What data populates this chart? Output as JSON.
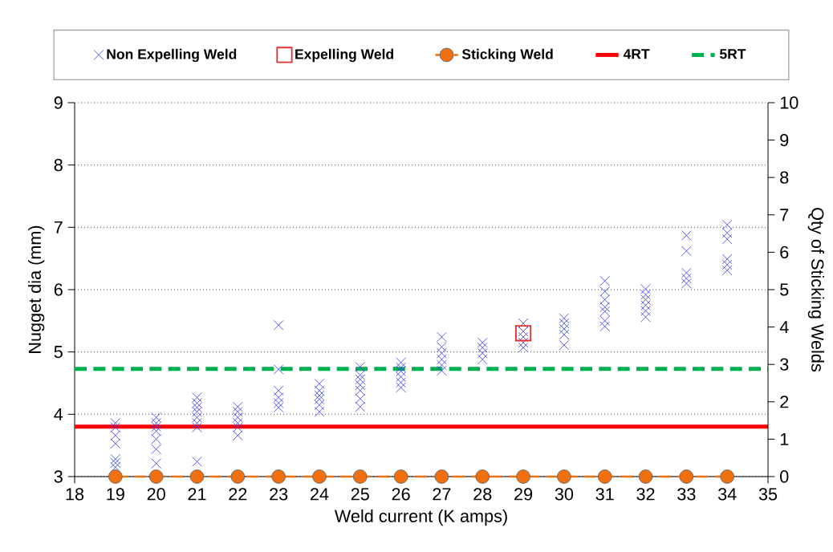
{
  "chart_data": {
    "type": "scatter",
    "xlabel": "Weld current (K amps)",
    "ylabel": "Nugget dia (mm)",
    "y2label": "Qty of Sticking Welds",
    "xlim": [
      18,
      35
    ],
    "xticks": [
      18,
      19,
      20,
      21,
      22,
      23,
      24,
      25,
      26,
      27,
      28,
      29,
      30,
      31,
      32,
      33,
      34,
      35
    ],
    "ylim": [
      3,
      9
    ],
    "yticks": [
      3,
      4,
      5,
      6,
      7,
      8,
      9
    ],
    "y2lim": [
      0,
      10
    ],
    "y2ticks": [
      0,
      1,
      2,
      3,
      4,
      5,
      6,
      7,
      8,
      9,
      10
    ],
    "grid": "y",
    "legend": "top",
    "series": [
      {
        "name": "Non Expelling Weld",
        "marker": "cross",
        "color": "#3b3bf0",
        "x": [
          19,
          19,
          19,
          19,
          19,
          19,
          19,
          20,
          20,
          20,
          20,
          20,
          20,
          20,
          21,
          21,
          21,
          21,
          21,
          21,
          21,
          21,
          22,
          22,
          22,
          22,
          22,
          22,
          23,
          23,
          23,
          23,
          23,
          23,
          24,
          24,
          24,
          24,
          24,
          24,
          25,
          25,
          25,
          25,
          25,
          25,
          25,
          26,
          26,
          26,
          26,
          26,
          26,
          27,
          27,
          27,
          27,
          27,
          27,
          28,
          28,
          28,
          28,
          29,
          29,
          29,
          29,
          29,
          30,
          30,
          30,
          30,
          30,
          31,
          31,
          31,
          31,
          31,
          31,
          31,
          32,
          32,
          32,
          32,
          32,
          32,
          33,
          33,
          33,
          33,
          33,
          34,
          34,
          34,
          34,
          34,
          34
        ],
        "values": [
          3.86,
          3.79,
          3.66,
          3.53,
          3.28,
          3.22,
          3.15,
          3.95,
          3.86,
          3.8,
          3.73,
          3.6,
          3.44,
          3.21,
          4.27,
          4.18,
          4.11,
          4.04,
          3.95,
          3.86,
          3.79,
          3.24,
          4.12,
          4.04,
          3.95,
          3.86,
          3.79,
          3.66,
          5.43,
          4.72,
          4.38,
          4.27,
          4.18,
          4.11,
          4.49,
          4.38,
          4.3,
          4.24,
          4.15,
          4.04,
          4.76,
          4.63,
          4.56,
          4.47,
          4.38,
          4.25,
          4.12,
          4.83,
          4.75,
          4.69,
          4.6,
          4.51,
          4.43,
          5.24,
          5.08,
          4.98,
          4.88,
          4.79,
          4.7,
          5.15,
          5.07,
          4.98,
          4.88,
          5.46,
          5.33,
          5.24,
          5.15,
          5.07,
          5.54,
          5.46,
          5.37,
          5.28,
          5.11,
          6.14,
          5.97,
          5.84,
          5.72,
          5.65,
          5.5,
          5.41,
          6.01,
          5.92,
          5.84,
          5.75,
          5.66,
          5.56,
          6.87,
          6.62,
          6.27,
          6.18,
          6.1,
          7.04,
          6.91,
          6.81,
          6.49,
          6.4,
          6.31
        ]
      },
      {
        "name": "Expelling Weld",
        "marker": "square",
        "color": "#e03030",
        "x": [
          29
        ],
        "values": [
          5.3
        ]
      },
      {
        "name": "Sticking Weld",
        "type": "line",
        "axis": "y2",
        "marker": "circle",
        "line_style": "dashed",
        "color": "#f07010",
        "x": [
          19,
          20,
          21,
          22,
          23,
          24,
          25,
          26,
          27,
          28,
          29,
          30,
          31,
          32,
          33,
          34
        ],
        "values": [
          0,
          0,
          0,
          0,
          0,
          0,
          0,
          0,
          0,
          0,
          0,
          0,
          0,
          0,
          0,
          0
        ]
      },
      {
        "name": "4RT",
        "type": "line",
        "color": "#ff0000",
        "x": [
          18,
          35
        ],
        "values": [
          3.8,
          3.8
        ]
      },
      {
        "name": "5RT",
        "type": "line",
        "line_style": "dashed",
        "color": "#00b050",
        "x": [
          18,
          35
        ],
        "values": [
          4.73,
          4.73
        ]
      }
    ]
  }
}
